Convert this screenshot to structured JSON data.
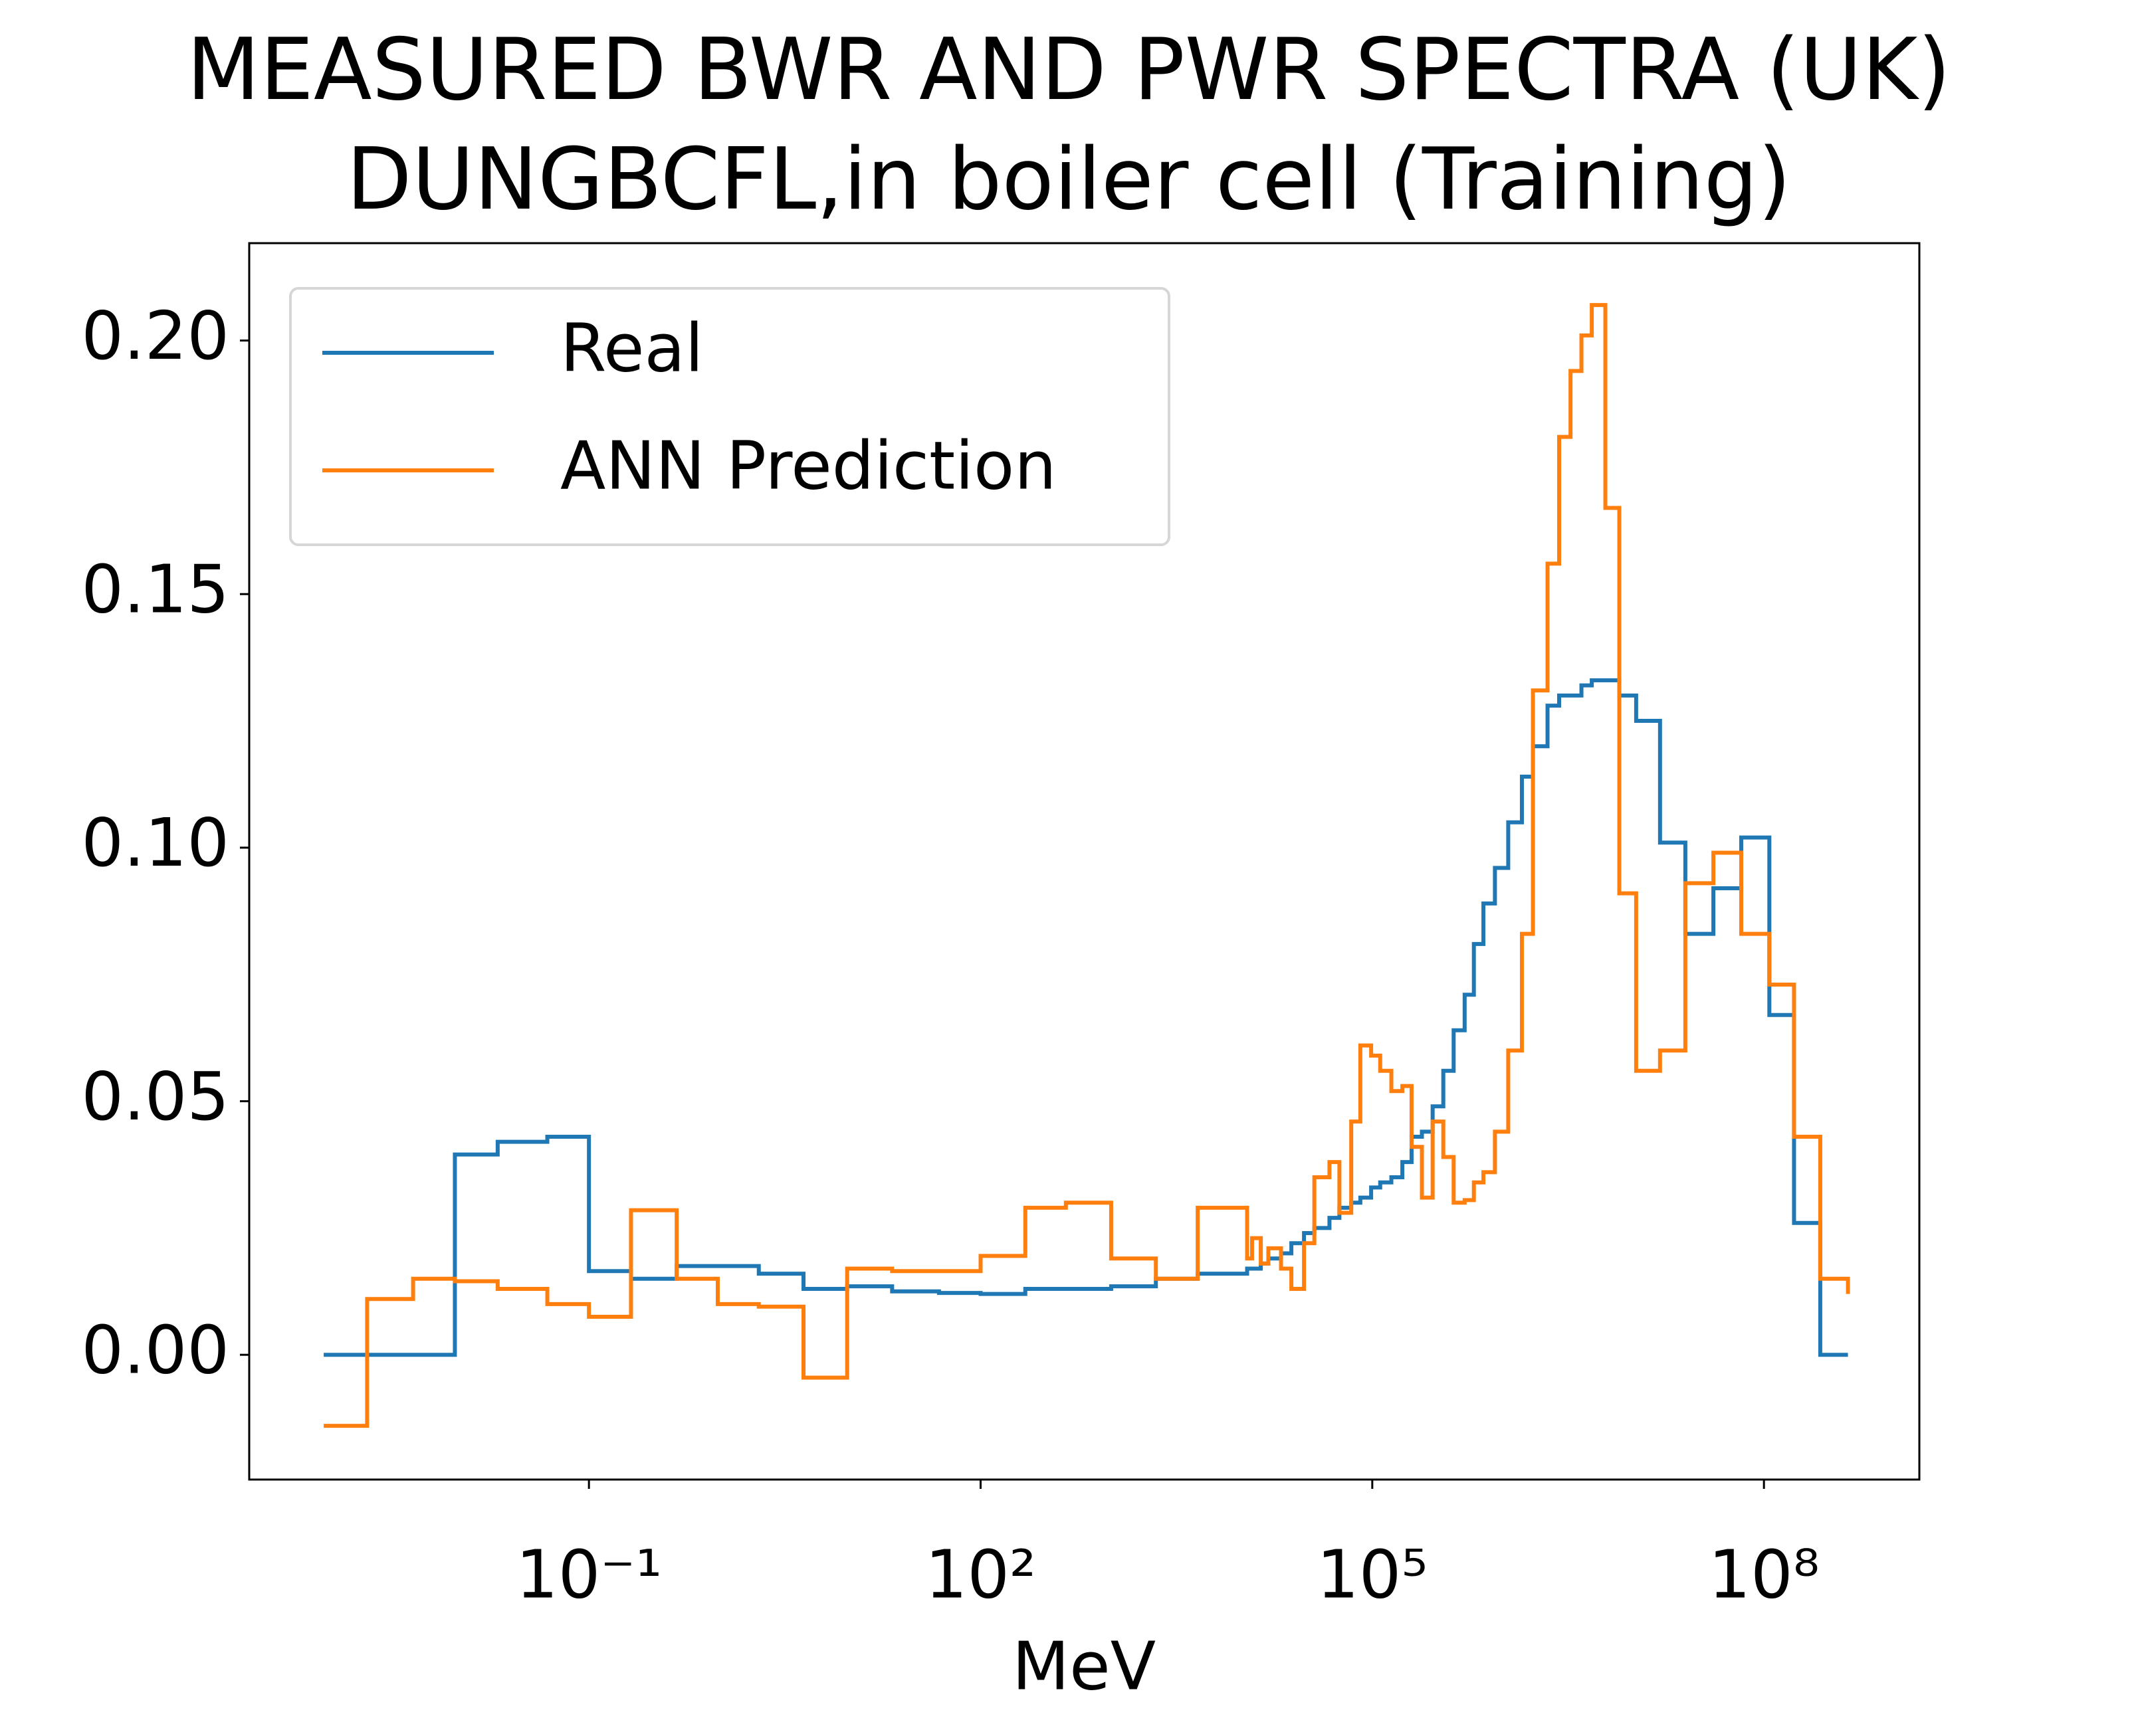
{
  "chart_data": {
    "type": "step",
    "title": [
      "MEASURED BWR AND PWR SPECTRA (UK)",
      "DUNGBCFL,in boiler cell (Training)"
    ],
    "x_label": "MeV",
    "xscale": "log",
    "xlim": [
      0.00025,
      1550000000.0
    ],
    "ylim": [
      -0.0246,
      0.2192
    ],
    "xticks": [
      {
        "value": 0.1,
        "label": "10⁻¹"
      },
      {
        "value": 100,
        "label": "10²"
      },
      {
        "value": 100000,
        "label": "10⁵"
      },
      {
        "value": 100000000,
        "label": "10⁸"
      }
    ],
    "yticks": [
      {
        "value": 0,
        "label": "0.00"
      },
      0.05,
      {
        "value": 0.1,
        "label": "0.10"
      },
      0.15,
      {
        "value": 0.2,
        "label": "0.20"
      }
    ],
    "grid": false,
    "legend": "upper left",
    "x": [
      0.00093,
      0.002,
      0.0045,
      0.0094,
      0.02,
      0.048,
      0.1,
      0.21,
      0.47,
      0.97,
      2.0,
      4.4,
      9.5,
      21,
      48,
      100,
      220,
      450,
      1000,
      2200,
      4600,
      11000.0,
      12000.0,
      14000.0,
      16000.0,
      20000.0,
      24000.0,
      30000.0,
      36000.0,
      47000.0,
      56000.0,
      69000.0,
      81000.0,
      98000.0,
      115000.0,
      140000.0,
      170000.0,
      200000.0,
      240000.0,
      290000.0,
      350000.0,
      420000.0,
      510000.0,
      600000.0,
      710000.0,
      870000.0,
      1100000.0,
      1400000.0,
      1700000.0,
      2200000.0,
      2700000.0,
      3300000.0,
      4000000.0,
      4800000.0,
      6100000.0,
      7800000.0,
      10500000.0,
      16000000.0,
      25000000.0,
      41000000.0,
      67000000.0,
      110000000.0,
      170000000.0,
      270000000.0,
      440000000.0
    ],
    "series": [
      {
        "name": "Real",
        "color": "#1f77b4",
        "values": [
          0,
          0,
          0,
          0.0395,
          0.042,
          0.043,
          0.0165,
          0.015,
          0.0175,
          0.0175,
          0.016,
          0.013,
          0.0135,
          0.0125,
          0.0122,
          0.012,
          0.013,
          0.013,
          0.0135,
          0.015,
          0.016,
          0.017,
          0.017,
          0.018,
          0.019,
          0.02,
          0.022,
          0.024,
          0.025,
          0.027,
          0.029,
          0.03,
          0.031,
          0.033,
          0.034,
          0.035,
          0.038,
          0.043,
          0.044,
          0.049,
          0.056,
          0.064,
          0.071,
          0.081,
          0.089,
          0.096,
          0.105,
          0.114,
          0.12,
          0.128,
          0.13,
          0.13,
          0.132,
          0.133,
          0.133,
          0.13,
          0.125,
          0.101,
          0.083,
          0.092,
          0.102,
          0.067,
          0.026,
          0,
          0
        ]
      },
      {
        "name": "ANN Prediction",
        "color": "#ff7f0e",
        "values": [
          -0.014,
          0.011,
          0.015,
          0.0145,
          0.013,
          0.01,
          0.0075,
          0.0285,
          0.015,
          0.01,
          0.0095,
          -0.0045,
          0.017,
          0.0165,
          0.0165,
          0.0195,
          0.029,
          0.03,
          0.019,
          0.015,
          0.029,
          0.019,
          0.023,
          0.018,
          0.021,
          0.017,
          0.013,
          0.022,
          0.035,
          0.038,
          0.028,
          0.046,
          0.061,
          0.059,
          0.056,
          0.052,
          0.053,
          0.041,
          0.031,
          0.046,
          0.039,
          0.03,
          0.0305,
          0.034,
          0.036,
          0.044,
          0.06,
          0.083,
          0.131,
          0.156,
          0.181,
          0.194,
          0.201,
          0.207,
          0.167,
          0.091,
          0.056,
          0.06,
          0.093,
          0.099,
          0.083,
          0.073,
          0.043,
          0.015,
          0.012
        ]
      }
    ]
  }
}
